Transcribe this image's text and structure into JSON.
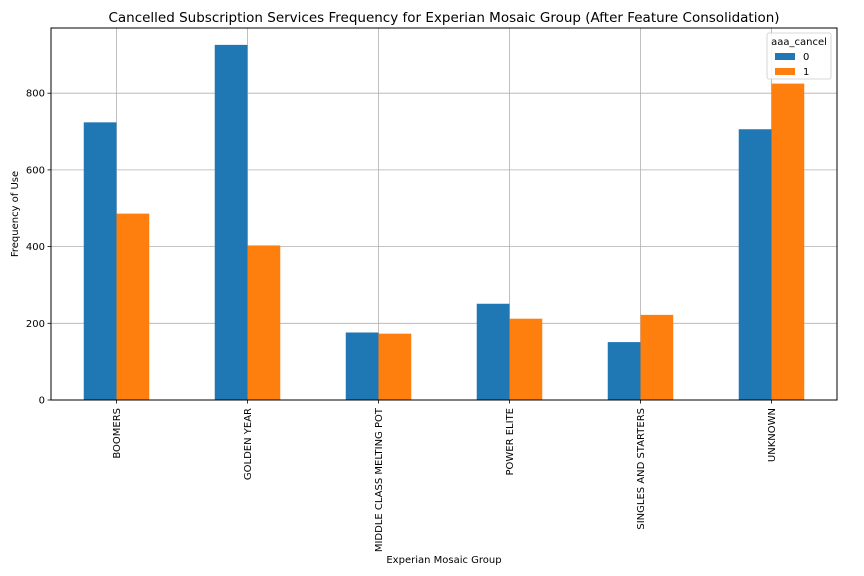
{
  "chart_data": {
    "type": "bar",
    "title": "Cancelled Subscription Services Frequency for Experian Mosaic Group (After Feature Consolidation)",
    "xlabel": "Experian Mosaic Group",
    "ylabel": "Frequency of Use",
    "categories": [
      "BOOMERS",
      "GOLDEN YEAR",
      "MIDDLE CLASS MELTING POT",
      "POWER ELITE",
      "SINGLES AND STARTERS",
      "UNKNOWN"
    ],
    "series": [
      {
        "name": "0",
        "color": "#1f77b4",
        "values": [
          724,
          926,
          176,
          251,
          151,
          706
        ]
      },
      {
        "name": "1",
        "color": "#ff7f0e",
        "values": [
          486,
          403,
          173,
          212,
          222,
          825
        ]
      }
    ],
    "ylim": [
      0,
      970
    ],
    "yticks": [
      0,
      200,
      400,
      600,
      800
    ],
    "grid": true,
    "legend": {
      "title": "aaa_cancel",
      "placement": "top-right"
    }
  }
}
